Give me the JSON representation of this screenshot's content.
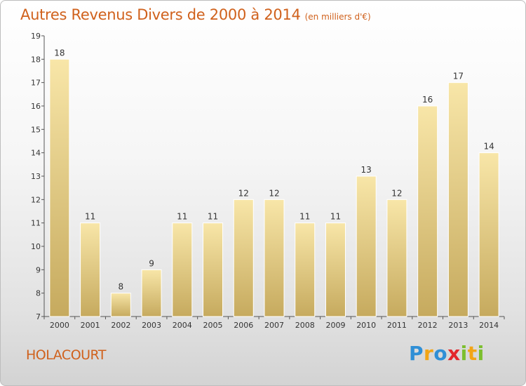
{
  "chart_data": {
    "type": "bar",
    "title": "Autres Revenus Divers de 2000 à 2014",
    "subtitle": "(en milliers d'€)",
    "categories": [
      "2000",
      "2001",
      "2002",
      "2003",
      "2004",
      "2005",
      "2006",
      "2007",
      "2008",
      "2009",
      "2010",
      "2011",
      "2012",
      "2013",
      "2014"
    ],
    "values": [
      18,
      11,
      8,
      9,
      11,
      11,
      12,
      12,
      11,
      11,
      13,
      12,
      16,
      17,
      14
    ],
    "ylim": [
      7,
      19
    ],
    "yticks": [
      7,
      8,
      9,
      10,
      11,
      12,
      13,
      14,
      15,
      16,
      17,
      18,
      19
    ],
    "grid": false,
    "bar_color": "#e6cc84"
  },
  "footer": {
    "commune": "HOLACOURT",
    "logo_letters": [
      "P",
      "r",
      "o",
      "x",
      "i",
      "t",
      "i"
    ],
    "logo_colors": [
      "#2f8fd6",
      "#f2a516",
      "#2f8fd6",
      "#e3272c",
      "#7cbf2e",
      "#f2a516",
      "#7cbf2e"
    ]
  }
}
